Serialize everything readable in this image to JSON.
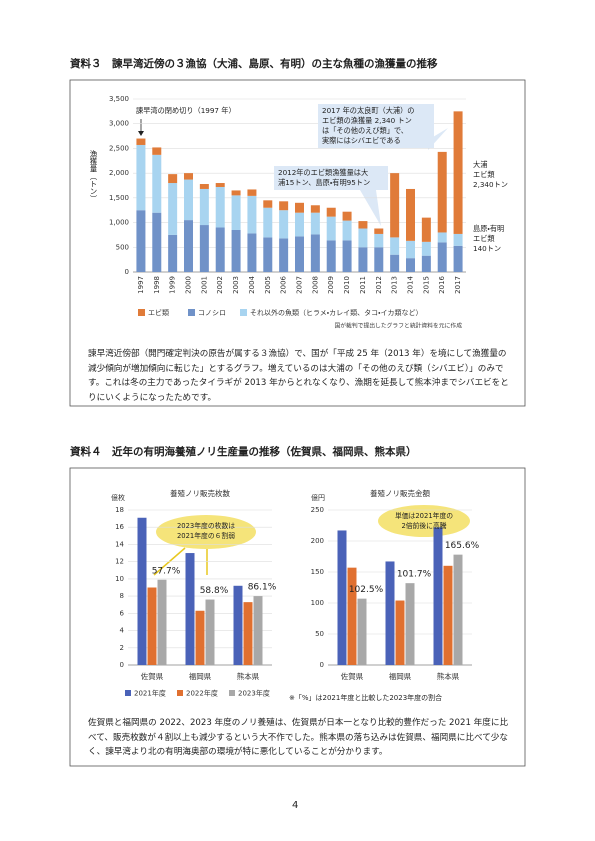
{
  "sections": [
    {
      "heading": "資料３　諫早湾近傍の３漁協（大浦、島原、有明）の主な魚種の漁獲量の推移",
      "text": "諫早湾近傍部（開門確定判決の原告が属する３漁協）で、国が「平成 25 年（2013 年）を境にして漁獲量の減少傾向が増加傾向に転じた」とするグラフ。増えているのは大浦の「その他のえび類（シバエビ）」のみです。これは冬の主力であったタイラギが 2013 年からとれなくなり、漁期を延長して熊本沖までシバエビをとりにいくようになったためです。"
    },
    {
      "heading": "資料４　近年の有明海養殖ノリ生産量の推移（佐賀県、福岡県、熊本県）",
      "text": "佐賀県と福岡県の 2022、2023 年度のノリ養殖は、佐賀県が日本一となり比較的豊作だった 2021 年度に比べて、販売枚数が４割以上も減少するという大不作でした。熊本県の落ち込みは佐賀県、福岡県に比べて少なく、諫早湾より北の有明海奥部の環境が特に悪化していることが分かります。",
      "note": "※「%」は2021年度と比較した2023年度の割合"
    }
  ],
  "chart_data": [
    {
      "type": "stacked_bar",
      "y_label": "漁獲量（トン）",
      "categories": [
        "1997",
        "1998",
        "1999",
        "2000",
        "2001",
        "2002",
        "2003",
        "2004",
        "2005",
        "2006",
        "2007",
        "2008",
        "2009",
        "2010",
        "2011",
        "2012",
        "2013",
        "2014",
        "2015",
        "2016",
        "2017"
      ],
      "series": [
        {
          "name": "コノシロ",
          "color": "#7092c8",
          "values": [
            1250,
            1200,
            750,
            1050,
            950,
            900,
            850,
            780,
            700,
            680,
            720,
            760,
            640,
            640,
            500,
            500,
            350,
            280,
            330,
            600,
            530
          ]
        },
        {
          "name": "それ以外の魚類（ヒラメ・カレイ類、タコ・イカ類など）",
          "color": "#a8d4f0",
          "values": [
            1320,
            1170,
            1050,
            820,
            730,
            820,
            700,
            760,
            600,
            570,
            480,
            440,
            480,
            400,
            380,
            270,
            350,
            350,
            280,
            200,
            240
          ]
        },
        {
          "name": "エビ類",
          "color": "#e07b39",
          "values": [
            130,
            150,
            180,
            130,
            100,
            80,
            100,
            130,
            150,
            180,
            200,
            150,
            180,
            180,
            150,
            110,
            1300,
            1050,
            490,
            1630,
            2480
          ]
        }
      ],
      "ylim": [
        0,
        3500
      ],
      "yticks": [
        0,
        500,
        {
          "value": 1000,
          "label": "1,000"
        },
        {
          "value": 1500,
          "label": "1,500"
        },
        {
          "value": 2000,
          "label": "2,000"
        },
        {
          "value": 2500,
          "label": "2,500"
        },
        {
          "value": 3000,
          "label": "3,000"
        },
        {
          "value": 3500,
          "label": "3,500"
        }
      ],
      "annotations": [
        "諫早湾の閉め切り（1997 年）",
        "2017 年の太良町（大浦）の\nエビ類の漁獲量 2,340 トン\nは「その他のえび類」で、\n実際にはシバエビである",
        "2012年のエビ類漁獲量は大\n浦15トン、島原・有明95トン",
        "大浦\nエビ類\n2,340トン",
        "島原・有明\nエビ類\n140トン"
      ],
      "source": "国が裁判で提出したグラフと統計資料を元に作成"
    },
    {
      "type": "grouped_bar",
      "title": "養殖ノリ販売枚数",
      "unit": "億枚",
      "categories": [
        "佐賀県",
        "福岡県",
        "熊本県"
      ],
      "series": [
        {
          "name": "2021年度",
          "color": "#4a62b8",
          "values": [
            17.1,
            13.0,
            9.2
          ]
        },
        {
          "name": "2022年度",
          "color": "#e07030",
          "values": [
            9.0,
            6.3,
            7.3
          ]
        },
        {
          "name": "2023年度",
          "color": "#a8a8a8",
          "values": [
            9.9,
            7.6,
            8.0
          ]
        }
      ],
      "ylim": [
        0,
        18
      ],
      "yticks": [
        0,
        2,
        4,
        6,
        8,
        10,
        12,
        14,
        16,
        18
      ],
      "ratio_labels": [
        "57.7%",
        "58.8%",
        "86.1%"
      ],
      "callout": "2023年度の枚数は\n2021年度の６割弱"
    },
    {
      "type": "grouped_bar",
      "title": "養殖ノリ販売金額",
      "unit": "億円",
      "categories": [
        "佐賀県",
        "福岡県",
        "熊本県"
      ],
      "series": [
        {
          "color": "#4a62b8",
          "values": [
            217,
            167,
            222
          ]
        },
        {
          "color": "#e07030",
          "values": [
            157,
            104,
            160
          ]
        },
        {
          "color": "#a8a8a8",
          "values": [
            107,
            132,
            178
          ]
        }
      ],
      "ylim": [
        0,
        250
      ],
      "yticks": [
        0,
        50,
        100,
        150,
        200,
        250
      ],
      "ratio_labels": [
        "102.5%",
        "101.7%",
        "165.6%"
      ],
      "callout": "単価は2021年度の\n2倍前後に高騰"
    }
  ],
  "page_number": "4"
}
